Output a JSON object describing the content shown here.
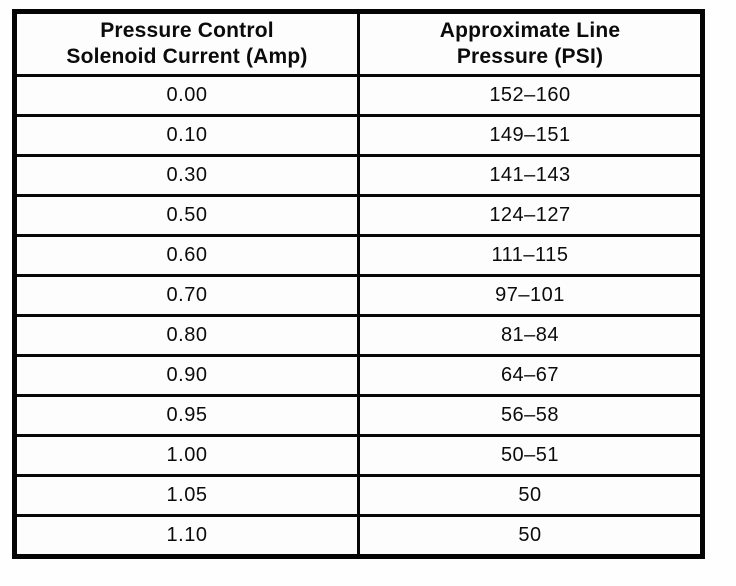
{
  "document": {
    "table": {
      "headers": [
        {
          "line1": "Pressure Control",
          "line2": "Solenoid Current (Amp)"
        },
        {
          "line1": "Approximate Line",
          "line2": "Pressure (PSI)"
        }
      ],
      "rows": [
        {
          "current": "0.00",
          "pressure": "152–160"
        },
        {
          "current": "0.10",
          "pressure": "149–151"
        },
        {
          "current": "0.30",
          "pressure": "141–143"
        },
        {
          "current": "0.50",
          "pressure": "124–127"
        },
        {
          "current": "0.60",
          "pressure": "111–115"
        },
        {
          "current": "0.70",
          "pressure": "97–101"
        },
        {
          "current": "0.80",
          "pressure": "81–84"
        },
        {
          "current": "0.90",
          "pressure": "64–67"
        },
        {
          "current": "0.95",
          "pressure": "56–58"
        },
        {
          "current": "1.00",
          "pressure": "50–51"
        },
        {
          "current": "1.05",
          "pressure": "50"
        },
        {
          "current": "1.10",
          "pressure": "50"
        }
      ]
    }
  }
}
